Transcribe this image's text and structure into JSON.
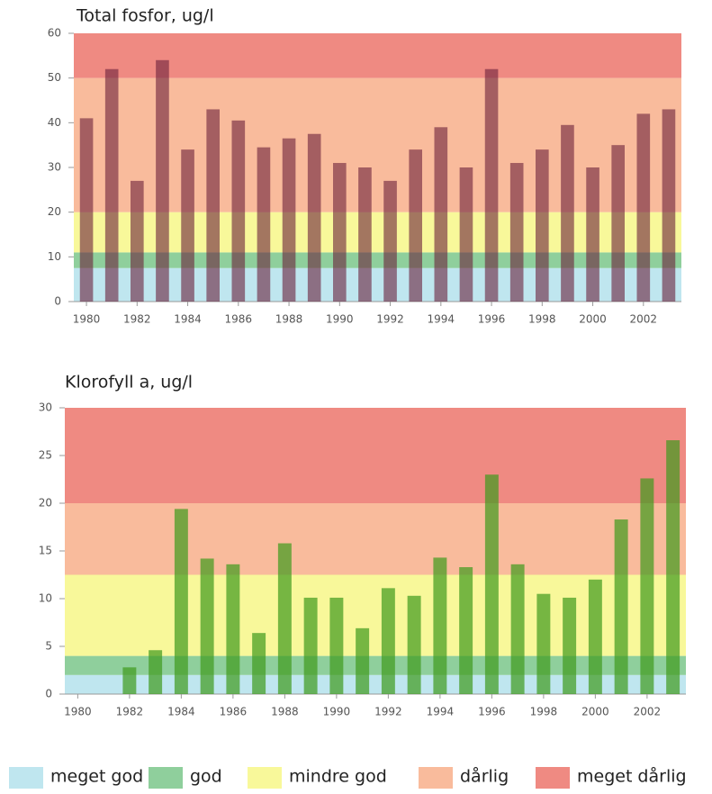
{
  "legend": [
    {
      "name": "meget god",
      "color": "#bfe6ef"
    },
    {
      "name": "god",
      "color": "#8fcf9c"
    },
    {
      "name": "mindre god",
      "color": "#f8f89a"
    },
    {
      "name": "dårlig",
      "color": "#f9bb9c"
    },
    {
      "name": "meget dårlig",
      "color": "#ef8a82"
    }
  ],
  "chart_data": [
    {
      "type": "bar",
      "title": "Total fosfor, ug/l",
      "x": [
        1980,
        1981,
        1982,
        1983,
        1984,
        1985,
        1986,
        1987,
        1988,
        1989,
        1990,
        1991,
        1992,
        1993,
        1994,
        1995,
        1996,
        1997,
        1998,
        1999,
        2000,
        2001,
        2002,
        2003
      ],
      "values": [
        41,
        52,
        27,
        54,
        34,
        43,
        40.5,
        34.5,
        36.5,
        37.5,
        31,
        30,
        27,
        34,
        39,
        30,
        52,
        31,
        34,
        39.5,
        30,
        35,
        42,
        43
      ],
      "color": "#6b1f3a",
      "opacity": 0.6,
      "bands": [
        [
          0,
          7.5
        ],
        [
          7.5,
          11
        ],
        [
          11,
          20
        ],
        [
          20,
          50
        ],
        [
          50,
          60
        ]
      ],
      "xlim": [
        1979.5,
        2003.5
      ],
      "xticks": [
        1980,
        1982,
        1984,
        1986,
        1988,
        1990,
        1992,
        1994,
        1996,
        1998,
        2000,
        2002
      ],
      "ylim": [
        0,
        60
      ],
      "yticks": [
        0,
        10,
        20,
        30,
        40,
        50,
        60
      ]
    },
    {
      "type": "bar",
      "title": "Klorofyll a,  ug/l",
      "x": [
        1980,
        1981,
        1982,
        1983,
        1984,
        1985,
        1986,
        1987,
        1988,
        1989,
        1990,
        1991,
        1992,
        1993,
        1994,
        1995,
        1996,
        1997,
        1998,
        1999,
        2000,
        2001,
        2002,
        2003
      ],
      "values": [
        null,
        null,
        2.8,
        4.6,
        19.4,
        14.2,
        13.6,
        6.4,
        15.8,
        10.1,
        10.1,
        6.9,
        11.1,
        10.3,
        14.3,
        13.3,
        23,
        13.6,
        10.5,
        10.1,
        12,
        18.3,
        22.6,
        26.6
      ],
      "color": "#3f9a1c",
      "opacity": 0.7,
      "bands": [
        [
          0,
          2
        ],
        [
          2,
          4
        ],
        [
          4,
          12.5
        ],
        [
          12.5,
          20
        ],
        [
          20,
          30
        ]
      ],
      "xlim": [
        1979.5,
        2003.5
      ],
      "xticks": [
        1980,
        1982,
        1984,
        1986,
        1988,
        1990,
        1992,
        1994,
        1996,
        1998,
        2000,
        2002
      ],
      "ylim": [
        0,
        30
      ],
      "yticks": [
        0,
        5,
        10,
        15,
        20,
        25,
        30
      ]
    }
  ]
}
